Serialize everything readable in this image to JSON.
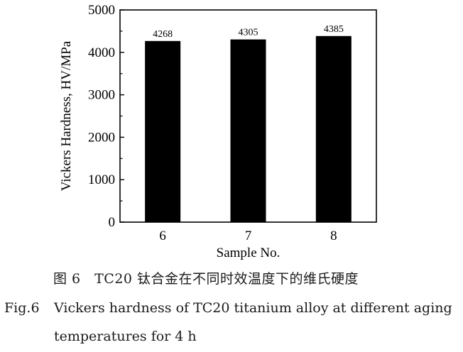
{
  "chart_data": {
    "type": "bar",
    "categories": [
      "6",
      "7",
      "8"
    ],
    "values": [
      4268,
      4305,
      4385
    ],
    "data_labels": [
      "4268",
      "4305",
      "4385"
    ],
    "xlabel": "Sample No.",
    "ylabel": "Vickers Hardness, HV/MPa",
    "ylim": [
      0,
      5000
    ],
    "yticks": [
      "0",
      "1000",
      "2000",
      "3000",
      "4000",
      "5000"
    ],
    "bar_color": "#000000",
    "grid": false,
    "legend": "none"
  },
  "caption": {
    "cn": "图 6　TC20 钛合金在不同时效温度下的维氏硬度",
    "en_label": "Fig.6",
    "en_line1": "Vickers hardness of TC20 titanium alloy at different aging",
    "en_line2": "temperatures for 4 h"
  }
}
